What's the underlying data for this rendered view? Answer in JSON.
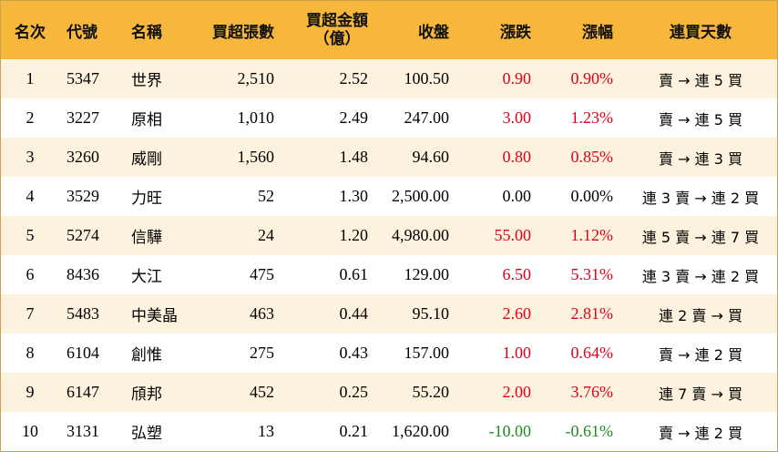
{
  "header": {
    "rank": "名次",
    "code": "代號",
    "name": "名稱",
    "net_volume": "買超張數",
    "net_amount_line1": "買超金額",
    "net_amount_line2": "（億）",
    "close": "收盤",
    "change": "漲跌",
    "change_pct": "漲幅",
    "buy_streak": "連買天數"
  },
  "colors": {
    "header_bg": "#f6b73c",
    "stripe": "#fdf2dd",
    "up": "#e0001b",
    "down": "#1f8a1f"
  },
  "rows": [
    {
      "rank": "1",
      "code": "5347",
      "name": "世界",
      "net_volume": "2,510",
      "net_amount": "2.52",
      "close": "100.50",
      "change": "0.90",
      "change_pct": "0.90%",
      "buy_streak": "賣 → 連 5 買",
      "dir": "up"
    },
    {
      "rank": "2",
      "code": "3227",
      "name": "原相",
      "net_volume": "1,010",
      "net_amount": "2.49",
      "close": "247.00",
      "change": "3.00",
      "change_pct": "1.23%",
      "buy_streak": "賣 → 連 5 買",
      "dir": "up"
    },
    {
      "rank": "3",
      "code": "3260",
      "name": "威剛",
      "net_volume": "1,560",
      "net_amount": "1.48",
      "close": "94.60",
      "change": "0.80",
      "change_pct": "0.85%",
      "buy_streak": "賣 → 連 3 買",
      "dir": "up"
    },
    {
      "rank": "4",
      "code": "3529",
      "name": "力旺",
      "net_volume": "52",
      "net_amount": "1.30",
      "close": "2,500.00",
      "change": "0.00",
      "change_pct": "0.00%",
      "buy_streak": "連 3 賣 → 連 2 買",
      "dir": "flat"
    },
    {
      "rank": "5",
      "code": "5274",
      "name": "信驊",
      "net_volume": "24",
      "net_amount": "1.20",
      "close": "4,980.00",
      "change": "55.00",
      "change_pct": "1.12%",
      "buy_streak": "連 5 賣 → 連 7 買",
      "dir": "up"
    },
    {
      "rank": "6",
      "code": "8436",
      "name": "大江",
      "net_volume": "475",
      "net_amount": "0.61",
      "close": "129.00",
      "change": "6.50",
      "change_pct": "5.31%",
      "buy_streak": "連 3 賣 → 連 2 買",
      "dir": "up"
    },
    {
      "rank": "7",
      "code": "5483",
      "name": "中美晶",
      "net_volume": "463",
      "net_amount": "0.44",
      "close": "95.10",
      "change": "2.60",
      "change_pct": "2.81%",
      "buy_streak": "連 2 賣 → 買",
      "dir": "up"
    },
    {
      "rank": "8",
      "code": "6104",
      "name": "創惟",
      "net_volume": "275",
      "net_amount": "0.43",
      "close": "157.00",
      "change": "1.00",
      "change_pct": "0.64%",
      "buy_streak": "賣 → 連 2 買",
      "dir": "up"
    },
    {
      "rank": "9",
      "code": "6147",
      "name": "頎邦",
      "net_volume": "452",
      "net_amount": "0.25",
      "close": "55.20",
      "change": "2.00",
      "change_pct": "3.76%",
      "buy_streak": "連 7 賣 → 買",
      "dir": "up"
    },
    {
      "rank": "10",
      "code": "3131",
      "name": "弘塑",
      "net_volume": "13",
      "net_amount": "0.21",
      "close": "1,620.00",
      "change": "-10.00",
      "change_pct": "-0.61%",
      "buy_streak": "賣 → 連 2 買",
      "dir": "down"
    }
  ]
}
